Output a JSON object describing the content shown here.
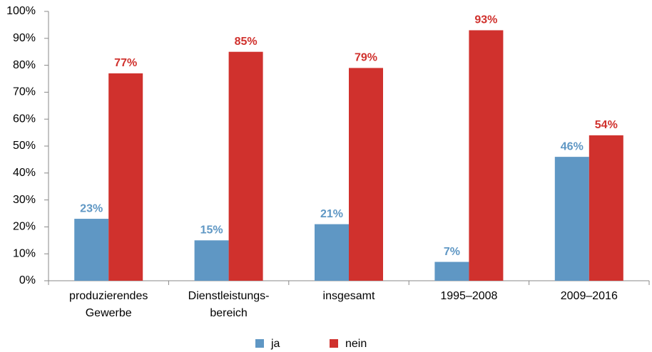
{
  "chart_data": {
    "type": "bar",
    "categories": [
      "produzierendes\nGewerbe",
      "Dienstleistungs-\nbereich",
      "insgesamt",
      "1995–2008",
      "2009–2016"
    ],
    "series": [
      {
        "name": "ja",
        "color": "#5f97c4",
        "values": [
          23,
          15,
          21,
          7,
          46
        ],
        "value_labels": [
          "23%",
          "15%",
          "21%",
          "7%",
          "46%"
        ]
      },
      {
        "name": "nein",
        "color": "#d0312d",
        "values": [
          77,
          85,
          79,
          93,
          54
        ],
        "value_labels": [
          "77%",
          "85%",
          "79%",
          "93%",
          "54%"
        ]
      }
    ],
    "ylim": [
      0,
      100
    ],
    "yticks": [
      {
        "value": 0,
        "label": "0%"
      },
      {
        "value": 10,
        "label": "10%"
      },
      {
        "value": 20,
        "label": "20%"
      },
      {
        "value": 30,
        "label": "30%"
      },
      {
        "value": 40,
        "label": "40%"
      },
      {
        "value": 50,
        "label": "50%"
      },
      {
        "value": 60,
        "label": "60%"
      },
      {
        "value": 70,
        "label": "70%"
      },
      {
        "value": 80,
        "label": "80%"
      },
      {
        "value": 90,
        "label": "90%"
      },
      {
        "value": 100,
        "label": "100%"
      }
    ],
    "grid": false,
    "legend": "bottom"
  }
}
